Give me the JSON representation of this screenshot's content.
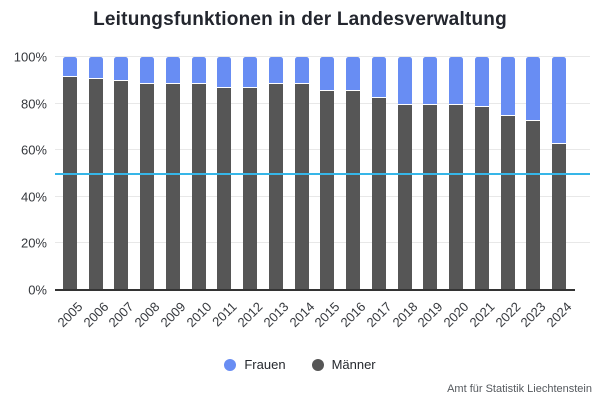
{
  "title": "Leitungsfunktionen in der Landesverwaltung",
  "source": "Amt für Statistik Liechtenstein",
  "y_axis": {
    "ticks": [
      "100%",
      "80%",
      "60%",
      "40%",
      "20%",
      "0%"
    ],
    "tick_percents": [
      100,
      80,
      60,
      40,
      20,
      0
    ]
  },
  "reference_line": {
    "value": 50,
    "color": "#36b6e8"
  },
  "colors": {
    "frauen": "#688df3",
    "maenner": "#565656",
    "grid": "#e8e8e8",
    "axis": "#333333"
  },
  "legend": {
    "items": [
      "Frauen",
      "Männer"
    ]
  },
  "chart_data": {
    "type": "bar",
    "stacked": true,
    "unit": "percent",
    "title": "Leitungsfunktionen in der Landesverwaltung",
    "categories": [
      2005,
      2006,
      2007,
      2008,
      2009,
      2010,
      2011,
      2012,
      2013,
      2014,
      2015,
      2016,
      2017,
      2018,
      2019,
      2020,
      2021,
      2022,
      2023,
      2024
    ],
    "series": [
      {
        "name": "Frauen",
        "color": "#688df3",
        "values": [
          8,
          9,
          10,
          11,
          11,
          11,
          13,
          13,
          11,
          11,
          14,
          14,
          17,
          20,
          20,
          20,
          21,
          25,
          27,
          37
        ]
      },
      {
        "name": "Männer",
        "color": "#565656",
        "values": [
          92,
          91,
          90,
          89,
          89,
          89,
          87,
          87,
          89,
          89,
          86,
          86,
          83,
          80,
          80,
          80,
          79,
          75,
          73,
          63
        ]
      }
    ],
    "xlabel": "",
    "ylabel": "",
    "ylim": [
      0,
      100
    ],
    "y_ticks_percent": [
      0,
      20,
      40,
      60,
      80,
      100
    ],
    "reference_line_y": 50,
    "grid": true,
    "legend_position": "bottom"
  }
}
